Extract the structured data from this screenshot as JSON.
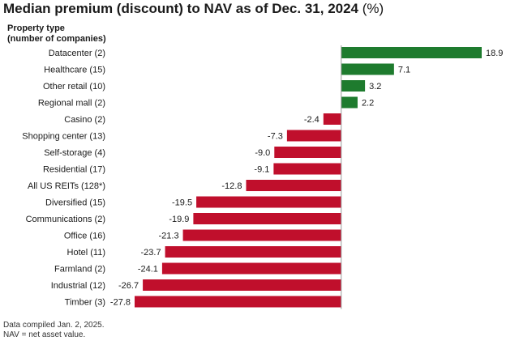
{
  "chart_data": {
    "type": "bar",
    "orientation": "horizontal",
    "title": "Median premium (discount) to NAV as of Dec. 31, 2024",
    "title_unit": "(%)",
    "ylabel": [
      "Property type",
      "(number of companies)"
    ],
    "categories": [
      "Datacenter (2)",
      "Healthcare (15)",
      "Other retail (10)",
      "Regional mall (2)",
      "Casino (2)",
      "Shopping center (13)",
      "Self-storage (4)",
      "Residential (17)",
      "All US REITs (128*)",
      "Diversified (15)",
      "Communications (2)",
      "Office (16)",
      "Hotel (11)",
      "Farmland (2)",
      "Industrial (12)",
      "Timber (3)"
    ],
    "values": [
      18.9,
      7.1,
      3.2,
      2.2,
      -2.4,
      -7.3,
      -9.0,
      -9.1,
      -12.8,
      -19.5,
      -19.9,
      -21.3,
      -23.7,
      -24.1,
      -26.7,
      -27.8
    ],
    "value_labels": [
      "18.9",
      "7.1",
      "3.2",
      "2.2",
      "-2.4",
      "-7.3",
      "-9.0",
      "-9.1",
      "-12.8",
      "-19.5",
      "-19.9",
      "-21.3",
      "-23.7",
      "-24.1",
      "-26.7",
      "-27.8"
    ],
    "xlim": [
      -27.8,
      18.9
    ],
    "grid": false,
    "colors": {
      "positive": "#1e7b2e",
      "negative": "#c00f2c",
      "baseline": "#999999"
    }
  },
  "footnotes": [
    "Data compiled Jan. 2, 2025.",
    "NAV = net asset value."
  ]
}
